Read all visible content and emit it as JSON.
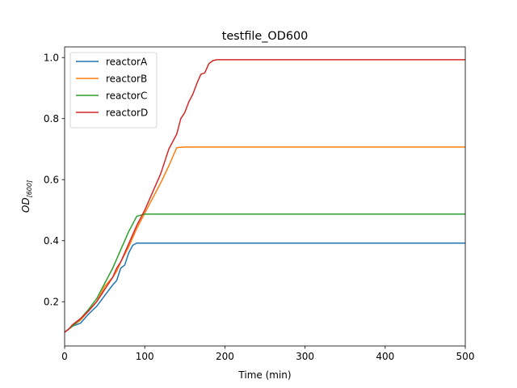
{
  "chart_data": {
    "type": "line",
    "title": "testfile_OD600",
    "xlabel": "Time (min)",
    "ylabel_main": "OD",
    "ylabel_sub": "[600]",
    "xlim": [
      0,
      500
    ],
    "ylim": [
      0.055,
      1.035
    ],
    "xticks": [
      0,
      100,
      200,
      300,
      400,
      500
    ],
    "xtick_labels": [
      "0",
      "100",
      "200",
      "300",
      "400",
      "500"
    ],
    "yticks": [
      0.2,
      0.4,
      0.6,
      0.8,
      1.0
    ],
    "ytick_labels": [
      "0.2",
      "0.4",
      "0.6",
      "0.8",
      "1.0"
    ],
    "grid": false,
    "legend_position": "top-left",
    "series": [
      {
        "name": "reactorA",
        "color": "#1f77b4",
        "points": [
          [
            0,
            0.1
          ],
          [
            10,
            0.12
          ],
          [
            20,
            0.13
          ],
          [
            30,
            0.16
          ],
          [
            40,
            0.185
          ],
          [
            50,
            0.22
          ],
          [
            60,
            0.255
          ],
          [
            65,
            0.27
          ],
          [
            70,
            0.31
          ],
          [
            75,
            0.32
          ],
          [
            80,
            0.36
          ],
          [
            85,
            0.385
          ],
          [
            90,
            0.392
          ],
          [
            100,
            0.392
          ],
          [
            500,
            0.392
          ]
        ]
      },
      {
        "name": "reactorB",
        "color": "#ff7f0e",
        "points": [
          [
            0,
            0.1
          ],
          [
            10,
            0.12
          ],
          [
            20,
            0.14
          ],
          [
            30,
            0.17
          ],
          [
            40,
            0.2
          ],
          [
            50,
            0.25
          ],
          [
            60,
            0.28
          ],
          [
            65,
            0.3
          ],
          [
            70,
            0.33
          ],
          [
            80,
            0.38
          ],
          [
            90,
            0.44
          ],
          [
            100,
            0.49
          ],
          [
            110,
            0.54
          ],
          [
            120,
            0.59
          ],
          [
            130,
            0.645
          ],
          [
            140,
            0.705
          ],
          [
            150,
            0.707
          ],
          [
            500,
            0.707
          ]
        ]
      },
      {
        "name": "reactorC",
        "color": "#2ca02c",
        "points": [
          [
            0,
            0.1
          ],
          [
            10,
            0.12
          ],
          [
            20,
            0.145
          ],
          [
            30,
            0.175
          ],
          [
            40,
            0.21
          ],
          [
            50,
            0.26
          ],
          [
            60,
            0.31
          ],
          [
            70,
            0.37
          ],
          [
            80,
            0.43
          ],
          [
            90,
            0.48
          ],
          [
            100,
            0.487
          ],
          [
            500,
            0.487
          ]
        ]
      },
      {
        "name": "reactorD",
        "color": "#d62728",
        "points": [
          [
            0,
            0.1
          ],
          [
            5,
            0.11
          ],
          [
            10,
            0.125
          ],
          [
            20,
            0.145
          ],
          [
            30,
            0.17
          ],
          [
            40,
            0.2
          ],
          [
            50,
            0.24
          ],
          [
            60,
            0.28
          ],
          [
            65,
            0.31
          ],
          [
            70,
            0.33
          ],
          [
            80,
            0.39
          ],
          [
            90,
            0.45
          ],
          [
            100,
            0.5
          ],
          [
            110,
            0.56
          ],
          [
            120,
            0.62
          ],
          [
            130,
            0.7
          ],
          [
            140,
            0.75
          ],
          [
            145,
            0.8
          ],
          [
            150,
            0.82
          ],
          [
            155,
            0.855
          ],
          [
            160,
            0.88
          ],
          [
            165,
            0.915
          ],
          [
            170,
            0.945
          ],
          [
            175,
            0.95
          ],
          [
            180,
            0.98
          ],
          [
            185,
            0.99
          ],
          [
            190,
            0.993
          ],
          [
            200,
            0.993
          ],
          [
            500,
            0.993
          ]
        ]
      }
    ]
  }
}
